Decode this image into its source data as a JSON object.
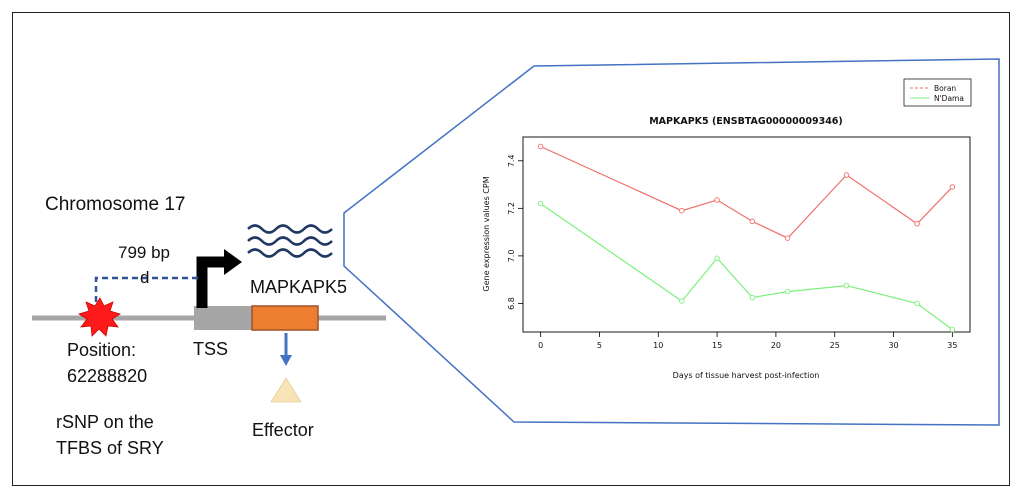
{
  "diagram": {
    "chromosome_label": "Chromosome 17",
    "distance_label": "799 bp",
    "distance_symbol": "d",
    "gene_label": "MAPKAPK5",
    "tss_label": "TSS",
    "position_label_line1": "Position:",
    "position_label_line2": "62288820",
    "rsnp_label_line1": "rSNP on the",
    "rsnp_label_line2": "TFBS of SRY",
    "effector_label": "Effector",
    "colors": {
      "snp": "#ff1a1a",
      "gene_body": "#ed7d31",
      "gene_border": "#a0522d",
      "chromosome": "#a6a6a6",
      "tss_block": "#a6a6a6",
      "dashed_line": "#2f5597",
      "wave": "#1f3864",
      "effector": "#f7e3b5",
      "arrow": "#4472c4",
      "callout": "#4472c4"
    }
  },
  "chart_data": {
    "type": "line",
    "title": "MAPKAPK5 (ENSBTAG00000009346)",
    "xlabel": "Days of tissue harvest post-infection",
    "ylabel": "Gene expression values CPM",
    "xlim": [
      -1.5,
      36.5
    ],
    "ylim": [
      6.68,
      7.5
    ],
    "xticks": [
      0,
      5,
      10,
      15,
      20,
      25,
      30,
      35
    ],
    "yticks": [
      6.8,
      7.0,
      7.2,
      7.4
    ],
    "ytick_labels": [
      "6.8",
      "7.0",
      "7.2",
      "7.4"
    ],
    "legend_position": "top-right",
    "series": [
      {
        "name": "Boran",
        "color": "#f0706b",
        "x": [
          0,
          12,
          15,
          18,
          21,
          26,
          32,
          35
        ],
        "y": [
          7.46,
          7.19,
          7.235,
          7.145,
          7.075,
          7.34,
          7.135,
          7.29
        ]
      },
      {
        "name": "N'Dama",
        "color": "#7cf07c",
        "x": [
          0,
          12,
          15,
          18,
          21,
          26,
          32,
          35
        ],
        "y": [
          7.22,
          6.81,
          6.99,
          6.825,
          6.85,
          6.875,
          6.8,
          6.69
        ]
      }
    ]
  }
}
